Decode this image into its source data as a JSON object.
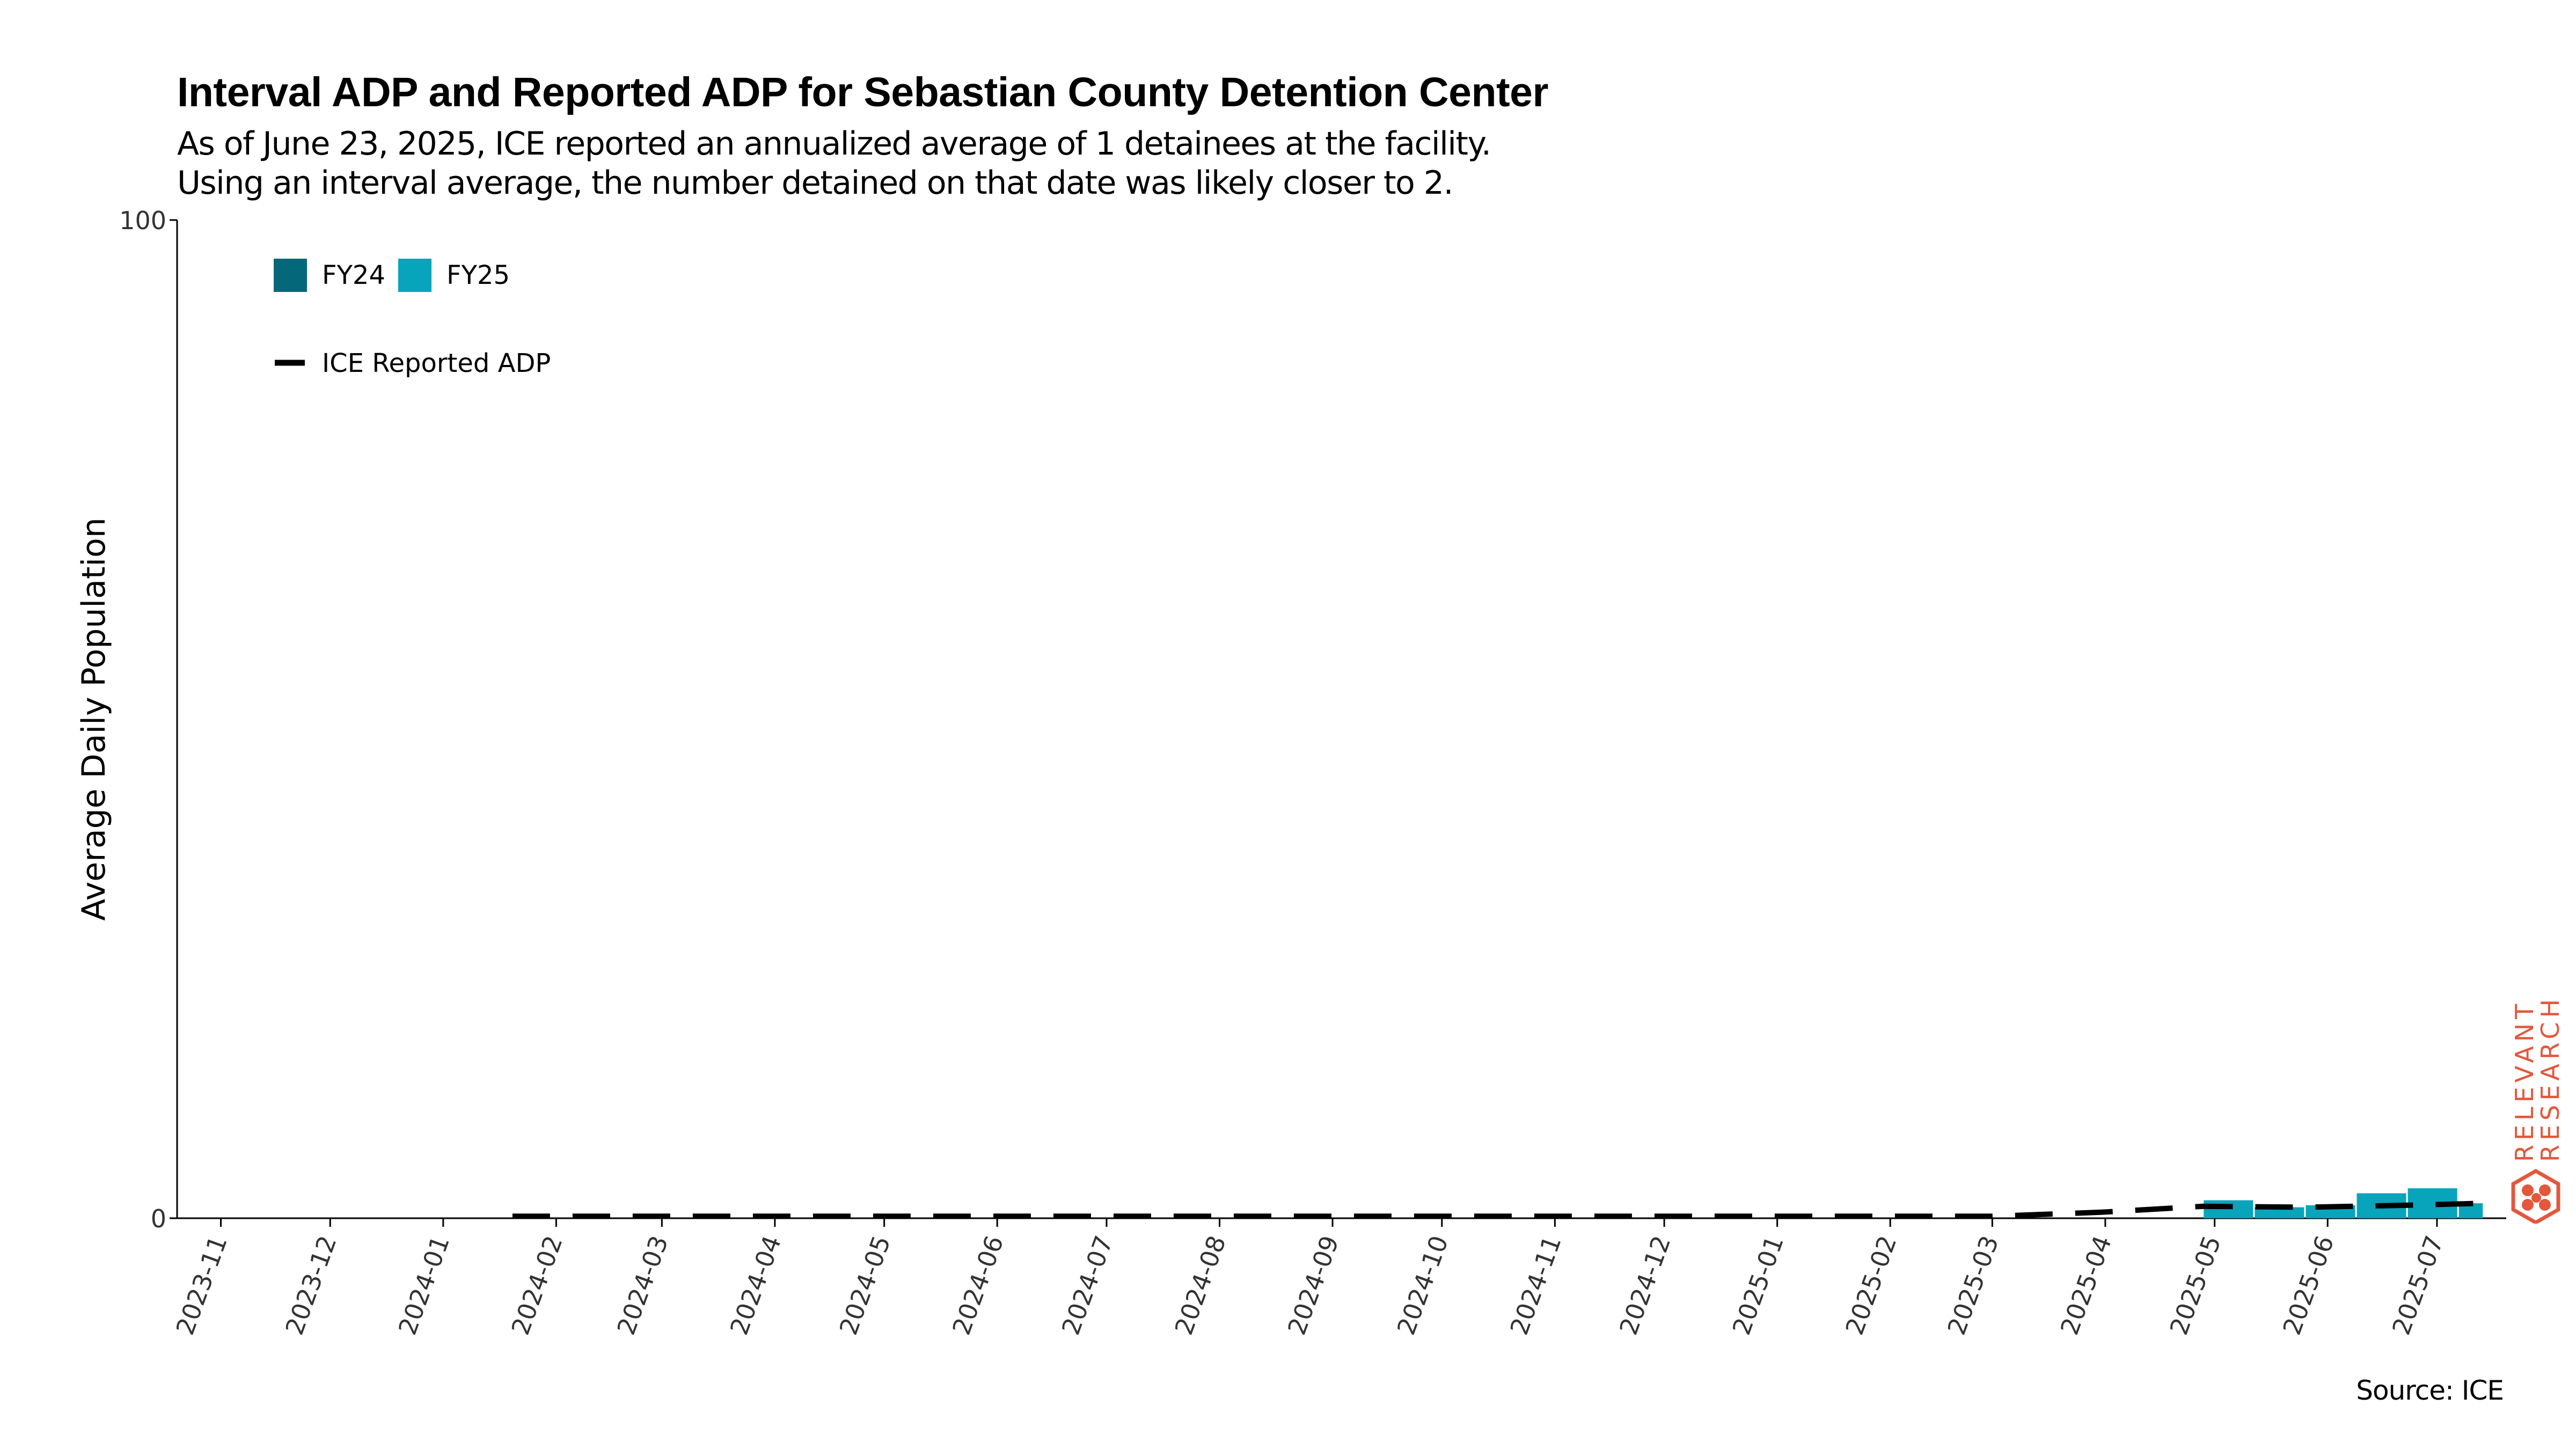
{
  "header": {
    "title": "Interval ADP and Reported ADP for Sebastian County Detention Center",
    "subtitle_line1": "As of June 23, 2025, ICE reported an annualized average of 1 detainees at the facility.",
    "subtitle_line2": "Using an interval average, the number detained on that date was likely closer to 2."
  },
  "footer": {
    "source": "Source: ICE"
  },
  "logo": {
    "line1": "RELEVANT",
    "line2": "RESEARCH",
    "color": "#e4573d"
  },
  "chart_data": {
    "type": "bar",
    "title": "Interval ADP and Reported ADP for Sebastian County Detention Center",
    "ylabel": "Average Daily Population",
    "xlabel": "",
    "ylim": [
      0,
      100
    ],
    "y_ticks": [
      "0",
      "100"
    ],
    "x_ticks": [
      "2023-11",
      "2023-12",
      "2024-01",
      "2024-02",
      "2024-03",
      "2024-04",
      "2024-05",
      "2024-06",
      "2024-07",
      "2024-08",
      "2024-09",
      "2024-10",
      "2024-11",
      "2024-12",
      "2025-01",
      "2025-02",
      "2025-03",
      "2025-04",
      "2025-05",
      "2025-06",
      "2025-07"
    ],
    "x_range": [
      "2023-10-20",
      "2025-07-20"
    ],
    "legend": {
      "placement": "top-left",
      "bars": [
        {
          "name": "FY24",
          "color": "#05687a"
        },
        {
          "name": "FY25",
          "color": "#08a4bb"
        }
      ],
      "line": {
        "name": "ICE Reported ADP",
        "color": "#000000"
      }
    },
    "series": [
      {
        "name": "FY25",
        "kind": "bar",
        "color": "#08a4bb",
        "bars": [
          {
            "start": "2025-04-28",
            "end": "2025-05-12",
            "value": 1.8
          },
          {
            "start": "2025-05-12",
            "end": "2025-05-26",
            "value": 1.1
          },
          {
            "start": "2025-05-26",
            "end": "2025-06-09",
            "value": 1.3
          },
          {
            "start": "2025-06-09",
            "end": "2025-06-23",
            "value": 2.5
          },
          {
            "start": "2025-06-23",
            "end": "2025-07-07",
            "value": 3.0
          },
          {
            "start": "2025-07-07",
            "end": "2025-07-14",
            "value": 1.5
          }
        ]
      },
      {
        "name": "ICE Reported ADP",
        "kind": "line",
        "style": "dashed",
        "color": "#000000",
        "points": [
          {
            "x": "2024-01-20",
            "y": 0.2
          },
          {
            "x": "2024-03-01",
            "y": 0.2
          },
          {
            "x": "2024-06-01",
            "y": 0.2
          },
          {
            "x": "2024-09-01",
            "y": 0.2
          },
          {
            "x": "2024-12-01",
            "y": 0.2
          },
          {
            "x": "2025-03-01",
            "y": 0.2
          },
          {
            "x": "2025-03-31",
            "y": 0.6
          },
          {
            "x": "2025-04-28",
            "y": 1.2
          },
          {
            "x": "2025-05-26",
            "y": 1.1
          },
          {
            "x": "2025-06-23",
            "y": 1.3
          },
          {
            "x": "2025-07-14",
            "y": 1.5
          }
        ]
      }
    ]
  }
}
